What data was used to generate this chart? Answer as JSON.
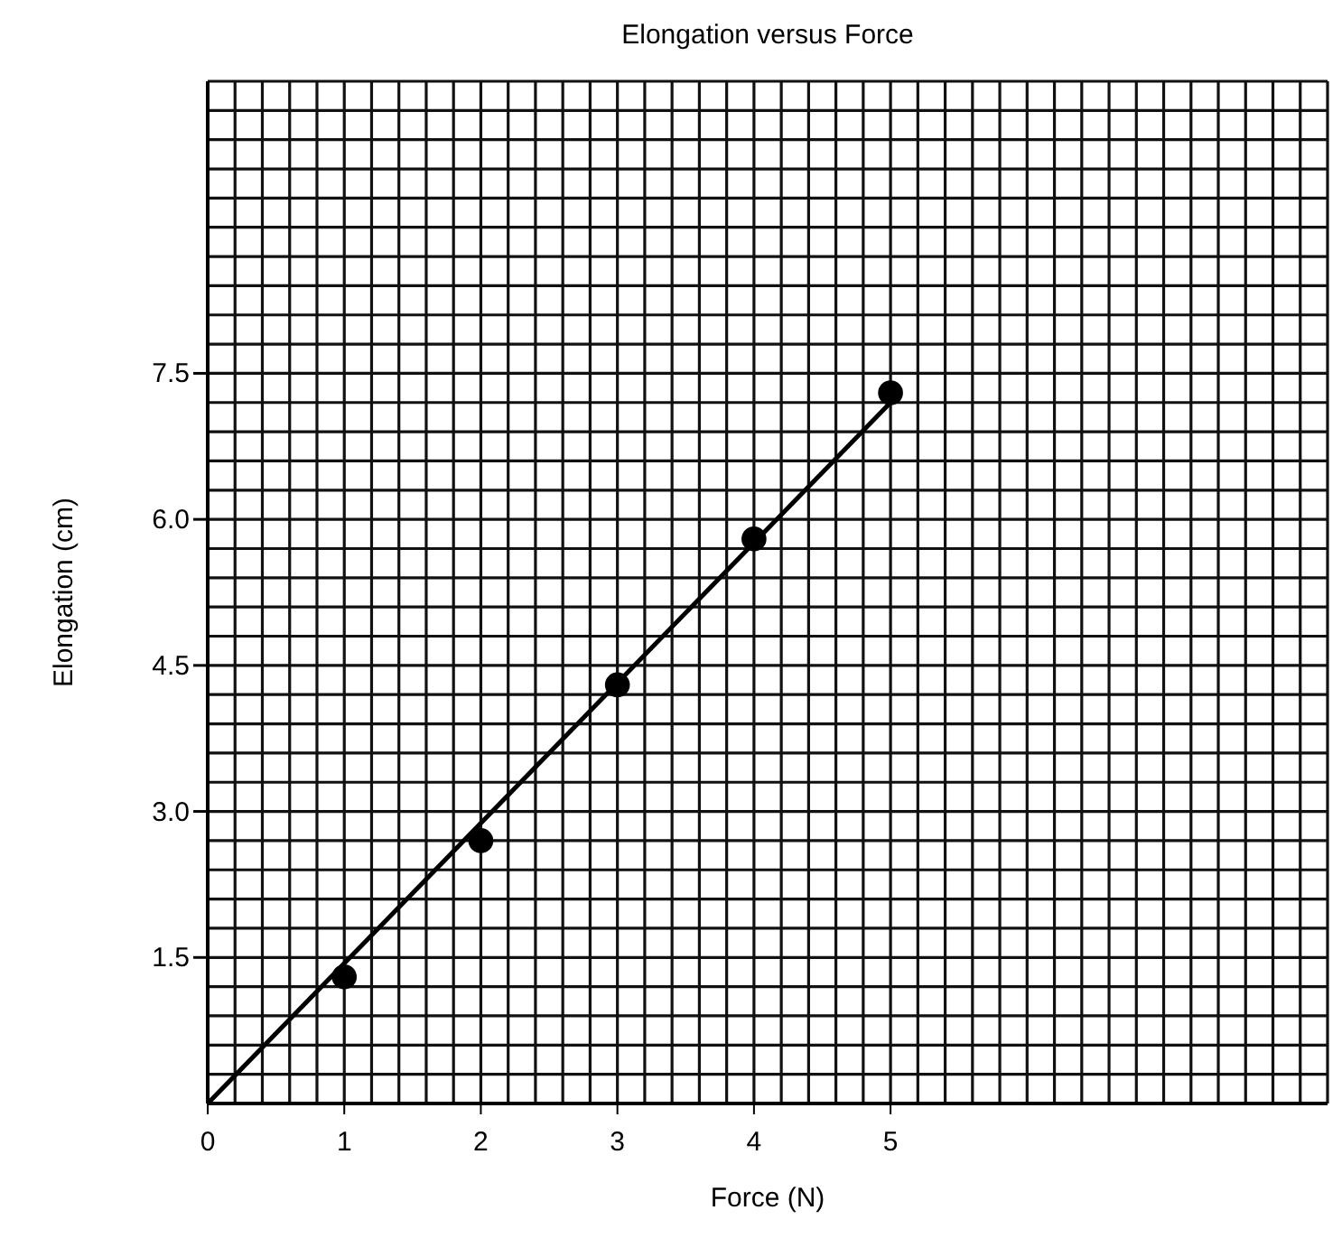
{
  "chart_data": {
    "type": "scatter",
    "title": "Elongation versus Force",
    "xlabel": "Force (N)",
    "ylabel": "Elongation (cm)",
    "xlim": [
      0,
      8.2
    ],
    "ylim": [
      0,
      10.5
    ],
    "grid": true,
    "marker": "circle",
    "xticks": [
      {
        "value": 0,
        "label": "0"
      },
      {
        "value": 0.2,
        "label": null
      },
      {
        "value": 0.4,
        "label": null
      },
      {
        "value": 0.6,
        "label": null
      },
      {
        "value": 0.8,
        "label": null
      },
      1,
      {
        "value": 1.2,
        "label": null
      },
      {
        "value": 1.4,
        "label": null
      },
      {
        "value": 1.6,
        "label": null
      },
      {
        "value": 1.8,
        "label": null
      },
      2,
      {
        "value": 2.2,
        "label": null
      },
      {
        "value": 2.4,
        "label": null
      },
      {
        "value": 2.6,
        "label": null
      },
      {
        "value": 2.8,
        "label": null
      },
      3,
      {
        "value": 3.2,
        "label": null
      },
      {
        "value": 3.4,
        "label": null
      },
      {
        "value": 3.6,
        "label": null
      },
      {
        "value": 3.8,
        "label": null
      },
      4,
      {
        "value": 4.2,
        "label": null
      },
      {
        "value": 4.4,
        "label": null
      },
      {
        "value": 4.6,
        "label": null
      },
      {
        "value": 4.8,
        "label": null
      },
      5,
      {
        "value": 5.2,
        "label": null
      },
      {
        "value": 5.4,
        "label": null
      },
      {
        "value": 5.6,
        "label": null
      },
      {
        "value": 5.8,
        "label": null
      },
      {
        "value": 6,
        "label": null
      },
      {
        "value": 6.2,
        "label": null
      },
      {
        "value": 6.4,
        "label": null
      },
      {
        "value": 6.6,
        "label": null
      },
      {
        "value": 6.8,
        "label": null
      },
      {
        "value": 7,
        "label": null
      },
      {
        "value": 7.2,
        "label": null
      },
      {
        "value": 7.4,
        "label": null
      },
      {
        "value": 7.6,
        "label": null
      },
      {
        "value": 7.8,
        "label": null
      },
      {
        "value": 8,
        "label": null
      },
      {
        "value": 8.2,
        "label": null
      }
    ],
    "yticks": [
      {
        "value": 0,
        "label": null
      },
      {
        "value": 0.3,
        "label": null
      },
      {
        "value": 0.6,
        "label": null
      },
      {
        "value": 0.9,
        "label": null
      },
      {
        "value": 1.2,
        "label": null
      },
      {
        "value": 1.5,
        "label": "1.5"
      },
      {
        "value": 1.8,
        "label": null
      },
      {
        "value": 2.1,
        "label": null
      },
      {
        "value": 2.4,
        "label": null
      },
      {
        "value": 2.7,
        "label": null
      },
      {
        "value": 3,
        "label": "3.0"
      },
      {
        "value": 3.3,
        "label": null
      },
      {
        "value": 3.6,
        "label": null
      },
      {
        "value": 3.9,
        "label": null
      },
      {
        "value": 4.2,
        "label": null
      },
      {
        "value": 4.5,
        "label": "4.5"
      },
      {
        "value": 4.8,
        "label": null
      },
      {
        "value": 5.1,
        "label": null
      },
      {
        "value": 5.4,
        "label": null
      },
      {
        "value": 5.7,
        "label": null
      },
      {
        "value": 6,
        "label": "6.0"
      },
      {
        "value": 6.3,
        "label": null
      },
      {
        "value": 6.6,
        "label": null
      },
      {
        "value": 6.9,
        "label": null
      },
      {
        "value": 7.2,
        "label": null
      },
      {
        "value": 7.5,
        "label": "7.5"
      },
      {
        "value": 7.8,
        "label": null
      },
      {
        "value": 8.1,
        "label": null
      },
      {
        "value": 8.4,
        "label": null
      },
      {
        "value": 8.7,
        "label": null
      },
      {
        "value": 9,
        "label": null
      },
      {
        "value": 9.3,
        "label": null
      },
      {
        "value": 9.6,
        "label": null
      },
      {
        "value": 9.9,
        "label": null
      },
      {
        "value": 10.2,
        "label": null
      },
      {
        "value": 10.5,
        "label": null
      }
    ],
    "series": [
      {
        "color": "#000000",
        "x": [
          1,
          2,
          3,
          4,
          5
        ],
        "values": [
          1.3,
          2.7,
          4.3,
          5.8,
          7.3
        ]
      },
      {
        "type": "line",
        "color": "#000000",
        "x": [
          0,
          5
        ],
        "values": [
          0,
          7.2
        ],
        "marker": "none"
      }
    ]
  }
}
